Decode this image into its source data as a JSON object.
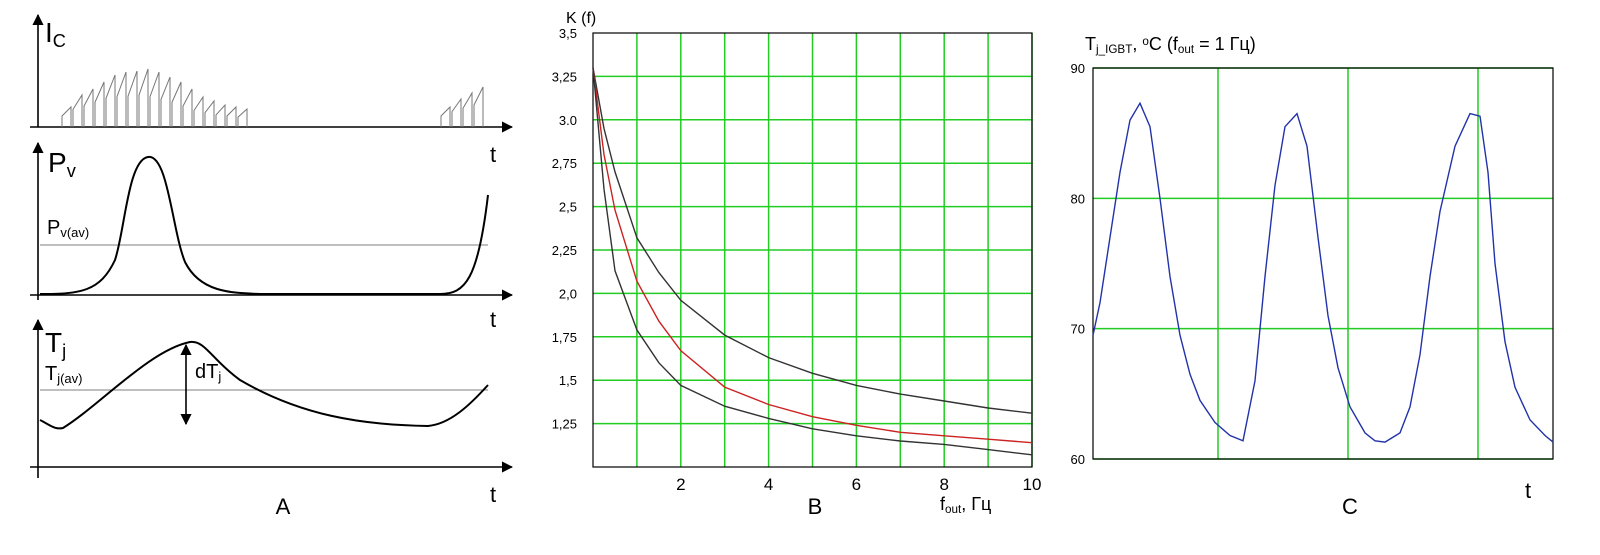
{
  "schematic": {
    "ic_label": [
      "I",
      "C"
    ],
    "t1": "t",
    "pv_label": [
      "P",
      "v"
    ],
    "pv_avg_label": [
      "P",
      "v(av)"
    ],
    "t2": "t",
    "tj_label": [
      "T",
      "j"
    ],
    "tj_avg_label": [
      "T",
      "j(av)"
    ],
    "dtj_label": [
      "dT",
      "j"
    ],
    "t3": "t",
    "panel_label": "A"
  },
  "chart_data": [
    {
      "type": "line",
      "title": "K (f)",
      "x_label": [
        "f",
        "out",
        ", Гц"
      ],
      "panel_label": "B",
      "xlim": [
        0,
        10
      ],
      "ylim": [
        1.0,
        3.5
      ],
      "xticks": [
        2,
        4,
        6,
        8,
        10
      ],
      "xgrid": [
        1,
        2,
        3,
        4,
        5,
        6,
        7,
        8,
        9,
        10
      ],
      "yticks": [
        {
          "value": 3.5,
          "label": "3,5"
        },
        {
          "value": 3.25,
          "label": "3,25"
        },
        {
          "value": 3.0,
          "label": "3.0"
        },
        {
          "value": 2.75,
          "label": "2,75"
        },
        {
          "value": 2.5,
          "label": "2,5"
        },
        {
          "value": 2.25,
          "label": "2,25"
        },
        {
          "value": 2.0,
          "label": "2,0"
        },
        {
          "value": 1.75,
          "label": "1,75"
        },
        {
          "value": 1.5,
          "label": "1,5"
        },
        {
          "value": 1.25,
          "label": "1,25"
        }
      ],
      "ygrid": [
        3.25,
        3.0,
        2.75,
        2.5,
        2.25,
        2.0,
        1.75,
        1.5,
        1.25
      ],
      "grid": true,
      "grid_color": "#22cc22",
      "x": [
        0,
        0.25,
        0.5,
        1,
        1.5,
        2,
        3,
        4,
        5,
        6,
        7,
        8,
        9,
        10
      ],
      "series": [
        {
          "color": "#333333",
          "values": [
            3.3,
            2.95,
            2.7,
            2.32,
            2.12,
            1.96,
            1.76,
            1.63,
            1.54,
            1.47,
            1.42,
            1.38,
            1.34,
            1.31
          ]
        },
        {
          "color": "#cc2222",
          "values": [
            3.3,
            2.8,
            2.48,
            2.07,
            1.84,
            1.67,
            1.46,
            1.36,
            1.29,
            1.24,
            1.2,
            1.18,
            1.16,
            1.14
          ]
        },
        {
          "color": "#333333",
          "values": [
            3.3,
            2.6,
            2.13,
            1.79,
            1.6,
            1.47,
            1.35,
            1.28,
            1.22,
            1.18,
            1.15,
            1.13,
            1.1,
            1.07
          ]
        }
      ]
    },
    {
      "type": "line",
      "title": [
        "T",
        "j_IGBT",
        ", ",
        "o",
        "C (f",
        "out",
        " = 1 Гц)"
      ],
      "x_label": "t",
      "panel_label": "C",
      "xlim": [
        0,
        460
      ],
      "ylim": [
        60,
        90
      ],
      "yticks": [
        60,
        70,
        80,
        90
      ],
      "xgrid": [
        125,
        255,
        385
      ],
      "grid": true,
      "grid_color": "#22cc22",
      "x": [
        0,
        7,
        17,
        27,
        37,
        47,
        57,
        67,
        77,
        87,
        97,
        107,
        122,
        137,
        150,
        162,
        172,
        182,
        192,
        204,
        214,
        225,
        235,
        245,
        257,
        272,
        282,
        292,
        307,
        317,
        327,
        337,
        347,
        362,
        377,
        387,
        395,
        402,
        412,
        422,
        437,
        452,
        460
      ],
      "series": [
        {
          "color": "#2233aa",
          "values": [
            69.5,
            72,
            77,
            82,
            86,
            87.3,
            85.5,
            80,
            74,
            69.5,
            66.5,
            64.5,
            62.8,
            61.8,
            61.4,
            66,
            74,
            81,
            85.5,
            86.5,
            84,
            77,
            71,
            67,
            64,
            62,
            61.4,
            61.3,
            62,
            64,
            68,
            74,
            79,
            84,
            86.5,
            86.3,
            82,
            75,
            69,
            65.5,
            63,
            61.8,
            61.3
          ]
        }
      ]
    }
  ]
}
